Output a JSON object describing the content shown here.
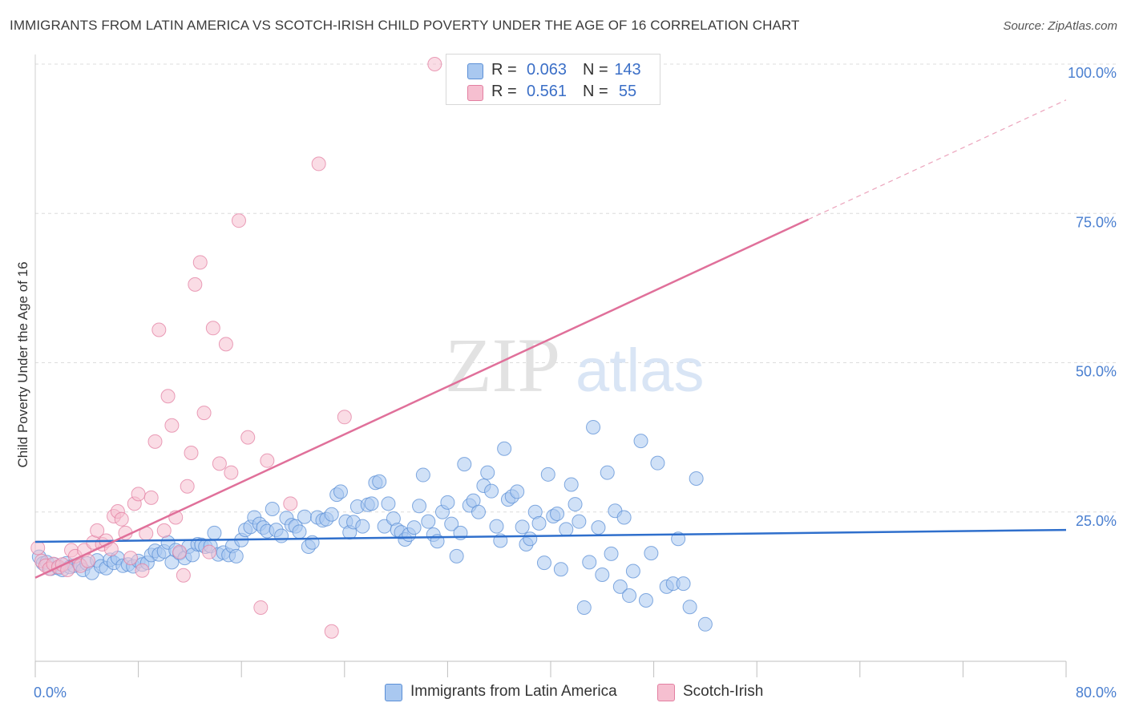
{
  "header": {
    "title": "IMMIGRANTS FROM LATIN AMERICA VS SCOTCH-IRISH CHILD POVERTY UNDER THE AGE OF 16 CORRELATION CHART",
    "source": "Source: ZipAtlas.com"
  },
  "watermark": {
    "zip": "ZIP",
    "atlas": "atlas"
  },
  "legend": {
    "rows": [
      {
        "r_label": "R =",
        "r_value": "0.063",
        "n_label": "N =",
        "n_value": "143",
        "color": "#a9c8f0",
        "border": "#5b8fd6"
      },
      {
        "r_label": "R =",
        "r_value": "0.561",
        "n_label": "N =",
        "n_value": "55",
        "color": "#f6bfd0",
        "border": "#e37fa1"
      }
    ]
  },
  "bottom_legend": {
    "items": [
      {
        "label": "Immigrants from Latin America",
        "color": "#a9c8f0",
        "border": "#5b8fd6"
      },
      {
        "label": "Scotch-Irish",
        "color": "#f6bfd0",
        "border": "#e37fa1"
      }
    ]
  },
  "chart_data": {
    "type": "scatter",
    "ylabel": "Child Poverty Under the Age of 16",
    "xlim": [
      0,
      80
    ],
    "ylim": [
      0,
      100
    ],
    "x_tick_labels": [
      "0.0%",
      "80.0%"
    ],
    "y_ticks": [
      {
        "value": 25,
        "label": "25.0%"
      },
      {
        "value": 50,
        "label": "50.0%"
      },
      {
        "value": 75,
        "label": "75.0%"
      },
      {
        "value": 100,
        "label": "100.0%"
      }
    ],
    "grid": true,
    "series": [
      {
        "name": "Immigrants from Latin America",
        "color": "#5b8fd6",
        "fill": "#a9c8f0",
        "trend": {
          "x": [
            0,
            80
          ],
          "y": [
            20.0,
            22.0
          ]
        },
        "points": [
          [
            0.3,
            17.5
          ],
          [
            0.6,
            16.4
          ],
          [
            0.9,
            16.6
          ],
          [
            1.2,
            15.5
          ],
          [
            1.5,
            16.2
          ],
          [
            1.8,
            15.6
          ],
          [
            2.1,
            15.3
          ],
          [
            2.4,
            16.4
          ],
          [
            2.7,
            15.8
          ],
          [
            3.0,
            16.0
          ],
          [
            3.4,
            16.3
          ],
          [
            3.7,
            15.3
          ],
          [
            4.0,
            16.4
          ],
          [
            4.4,
            14.8
          ],
          [
            4.8,
            16.9
          ],
          [
            5.1,
            15.9
          ],
          [
            5.5,
            15.6
          ],
          [
            5.8,
            17.0
          ],
          [
            6.1,
            16.5
          ],
          [
            6.4,
            17.3
          ],
          [
            6.8,
            16.0
          ],
          [
            7.2,
            16.2
          ],
          [
            7.6,
            15.9
          ],
          [
            8.0,
            16.8
          ],
          [
            8.3,
            16.2
          ],
          [
            8.7,
            16.5
          ],
          [
            9.0,
            17.8
          ],
          [
            9.3,
            18.5
          ],
          [
            9.6,
            17.9
          ],
          [
            10.0,
            18.4
          ],
          [
            10.3,
            19.9
          ],
          [
            10.6,
            16.6
          ],
          [
            10.9,
            18.6
          ],
          [
            11.2,
            18.1
          ],
          [
            11.6,
            17.3
          ],
          [
            11.9,
            19.2
          ],
          [
            12.2,
            17.8
          ],
          [
            12.6,
            19.6
          ],
          [
            12.9,
            19.5
          ],
          [
            13.2,
            19.2
          ],
          [
            13.6,
            19.3
          ],
          [
            13.9,
            21.5
          ],
          [
            14.2,
            17.9
          ],
          [
            14.6,
            18.2
          ],
          [
            15.0,
            17.8
          ],
          [
            15.3,
            19.3
          ],
          [
            15.6,
            17.6
          ],
          [
            16.0,
            20.3
          ],
          [
            16.3,
            22.0
          ],
          [
            16.7,
            22.5
          ],
          [
            17.0,
            24.1
          ],
          [
            17.4,
            23.0
          ],
          [
            17.7,
            22.4
          ],
          [
            18.0,
            21.8
          ],
          [
            18.4,
            25.5
          ],
          [
            18.7,
            22.0
          ],
          [
            19.1,
            21.0
          ],
          [
            19.5,
            24.0
          ],
          [
            19.9,
            22.8
          ],
          [
            20.2,
            22.6
          ],
          [
            20.5,
            21.7
          ],
          [
            20.9,
            24.2
          ],
          [
            21.2,
            19.2
          ],
          [
            21.5,
            19.9
          ],
          [
            21.9,
            24.1
          ],
          [
            22.3,
            23.6
          ],
          [
            22.6,
            23.8
          ],
          [
            23.0,
            24.6
          ],
          [
            23.4,
            27.9
          ],
          [
            23.7,
            28.4
          ],
          [
            24.1,
            23.4
          ],
          [
            24.4,
            21.6
          ],
          [
            24.7,
            23.3
          ],
          [
            25.0,
            25.9
          ],
          [
            25.4,
            22.6
          ],
          [
            25.8,
            26.2
          ],
          [
            26.1,
            26.4
          ],
          [
            26.4,
            29.9
          ],
          [
            26.7,
            30.1
          ],
          [
            27.1,
            22.6
          ],
          [
            27.4,
            26.4
          ],
          [
            27.8,
            23.9
          ],
          [
            28.1,
            22.0
          ],
          [
            28.4,
            21.6
          ],
          [
            28.7,
            20.4
          ],
          [
            29.0,
            21.2
          ],
          [
            29.4,
            22.4
          ],
          [
            29.8,
            26.0
          ],
          [
            30.1,
            31.2
          ],
          [
            30.5,
            23.4
          ],
          [
            30.9,
            21.2
          ],
          [
            31.2,
            20.1
          ],
          [
            31.6,
            25.0
          ],
          [
            32.0,
            26.6
          ],
          [
            32.3,
            23.0
          ],
          [
            32.7,
            17.6
          ],
          [
            33.0,
            21.5
          ],
          [
            33.3,
            33.0
          ],
          [
            33.7,
            26.1
          ],
          [
            34.0,
            26.9
          ],
          [
            34.4,
            25.0
          ],
          [
            34.8,
            29.4
          ],
          [
            35.1,
            31.6
          ],
          [
            35.4,
            28.5
          ],
          [
            35.8,
            22.6
          ],
          [
            36.1,
            20.2
          ],
          [
            36.4,
            35.6
          ],
          [
            36.7,
            27.1
          ],
          [
            37.0,
            27.6
          ],
          [
            37.4,
            28.4
          ],
          [
            37.8,
            22.5
          ],
          [
            38.1,
            19.6
          ],
          [
            38.4,
            20.5
          ],
          [
            38.8,
            25.0
          ],
          [
            39.1,
            23.1
          ],
          [
            39.5,
            16.5
          ],
          [
            39.8,
            31.3
          ],
          [
            40.2,
            24.3
          ],
          [
            40.5,
            24.7
          ],
          [
            40.8,
            15.4
          ],
          [
            41.2,
            22.1
          ],
          [
            41.6,
            29.6
          ],
          [
            41.9,
            26.3
          ],
          [
            42.2,
            23.4
          ],
          [
            42.6,
            9.0
          ],
          [
            43.0,
            16.6
          ],
          [
            43.3,
            39.2
          ],
          [
            43.7,
            22.4
          ],
          [
            44.0,
            14.5
          ],
          [
            44.4,
            31.6
          ],
          [
            44.7,
            18.0
          ],
          [
            45.0,
            25.2
          ],
          [
            45.4,
            12.5
          ],
          [
            45.7,
            24.1
          ],
          [
            46.1,
            11.0
          ],
          [
            46.4,
            15.1
          ],
          [
            47.0,
            36.9
          ],
          [
            47.4,
            10.2
          ],
          [
            47.8,
            18.1
          ],
          [
            48.3,
            33.2
          ],
          [
            49.0,
            12.5
          ],
          [
            49.5,
            13.0
          ],
          [
            49.9,
            20.5
          ],
          [
            50.3,
            13.0
          ],
          [
            50.8,
            9.1
          ],
          [
            51.3,
            30.6
          ],
          [
            52.0,
            6.2
          ]
        ]
      },
      {
        "name": "Scotch-Irish",
        "color": "#e37fa1",
        "fill": "#f6bfd0",
        "trend": {
          "x": [
            0,
            60
          ],
          "y": [
            14.0,
            74.0
          ]
        },
        "trend_extension": {
          "x": [
            60,
            80
          ],
          "y": [
            74.0,
            94.0
          ]
        },
        "points": [
          [
            0.2,
            19.0
          ],
          [
            0.5,
            16.8
          ],
          [
            0.8,
            16.0
          ],
          [
            1.1,
            15.5
          ],
          [
            1.4,
            16.3
          ],
          [
            1.8,
            15.8
          ],
          [
            2.1,
            16.2
          ],
          [
            2.5,
            15.3
          ],
          [
            2.8,
            18.6
          ],
          [
            3.1,
            17.6
          ],
          [
            3.5,
            16.0
          ],
          [
            3.8,
            18.6
          ],
          [
            4.1,
            16.8
          ],
          [
            4.5,
            19.9
          ],
          [
            4.8,
            21.9
          ],
          [
            5.2,
            19.6
          ],
          [
            5.5,
            20.2
          ],
          [
            5.9,
            18.8
          ],
          [
            6.1,
            24.3
          ],
          [
            6.4,
            25.1
          ],
          [
            6.7,
            23.8
          ],
          [
            7.0,
            21.5
          ],
          [
            7.4,
            17.3
          ],
          [
            7.7,
            26.4
          ],
          [
            8.0,
            28.0
          ],
          [
            8.3,
            15.2
          ],
          [
            8.6,
            21.4
          ],
          [
            9.0,
            27.4
          ],
          [
            9.3,
            36.8
          ],
          [
            9.6,
            55.5
          ],
          [
            10.0,
            21.9
          ],
          [
            10.3,
            44.4
          ],
          [
            10.6,
            39.5
          ],
          [
            10.9,
            24.1
          ],
          [
            11.2,
            18.3
          ],
          [
            11.5,
            14.4
          ],
          [
            11.8,
            29.3
          ],
          [
            12.1,
            34.9
          ],
          [
            12.4,
            63.1
          ],
          [
            12.8,
            66.8
          ],
          [
            13.1,
            41.6
          ],
          [
            13.5,
            18.3
          ],
          [
            13.8,
            55.8
          ],
          [
            14.3,
            33.1
          ],
          [
            14.8,
            53.1
          ],
          [
            15.2,
            31.6
          ],
          [
            15.8,
            73.8
          ],
          [
            16.5,
            37.5
          ],
          [
            17.5,
            9.0
          ],
          [
            18.0,
            33.6
          ],
          [
            19.8,
            26.4
          ],
          [
            22.0,
            83.3
          ],
          [
            23.0,
            5.0
          ],
          [
            24.0,
            40.9
          ],
          [
            31.0,
            100.0
          ]
        ]
      }
    ]
  }
}
